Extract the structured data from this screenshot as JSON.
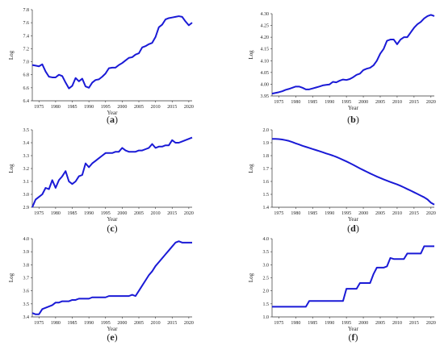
{
  "figure": {
    "style": {
      "line_color": "#1a1ad6",
      "axis_color": "#333333"
    },
    "panels": [
      {
        "id": "a",
        "caption": "(a)",
        "caption_letter": "a"
      },
      {
        "id": "b",
        "caption": "(b)",
        "caption_letter": "b"
      },
      {
        "id": "c",
        "caption": "(c)",
        "caption_letter": "c"
      },
      {
        "id": "d",
        "caption": "(d)",
        "caption_letter": "d"
      },
      {
        "id": "e",
        "caption": "(e)",
        "caption_letter": "e"
      },
      {
        "id": "f",
        "caption": "(f)",
        "caption_letter": "f"
      }
    ]
  },
  "chart_data": [
    {
      "type": "line",
      "xlabel": "Year",
      "ylabel": "Log",
      "xlim": [
        1973,
        2021
      ],
      "ylim": [
        6.4,
        7.8
      ],
      "x_ticks": [
        "1975",
        "1980",
        "1985",
        "1990",
        "1995",
        "2000",
        "2005",
        "2010",
        "2015",
        "2020"
      ],
      "y_ticks": [
        "6.4",
        "6.6",
        "6.8",
        "7.0",
        "7.2",
        "7.4",
        "7.6",
        "7.8"
      ],
      "series": [
        {
          "x": [
            1973,
            1974,
            1975,
            1976,
            1977,
            1978,
            1979,
            1980,
            1981,
            1982,
            1983,
            1984,
            1985,
            1986,
            1987,
            1988,
            1989,
            1990,
            1991,
            1992,
            1993,
            1994,
            1995,
            1996,
            1997,
            1998,
            1999,
            2000,
            2001,
            2002,
            2003,
            2004,
            2005,
            2006,
            2007,
            2008,
            2009,
            2010,
            2011,
            2012,
            2013,
            2014,
            2015,
            2016,
            2017,
            2018,
            2019,
            2020,
            2021
          ],
          "y": [
            6.95,
            6.94,
            6.93,
            6.96,
            6.85,
            6.77,
            6.76,
            6.76,
            6.8,
            6.78,
            6.68,
            6.59,
            6.63,
            6.75,
            6.7,
            6.74,
            6.62,
            6.6,
            6.68,
            6.72,
            6.73,
            6.77,
            6.82,
            6.9,
            6.91,
            6.91,
            6.95,
            6.98,
            7.02,
            7.06,
            7.07,
            7.11,
            7.13,
            7.22,
            7.24,
            7.27,
            7.29,
            7.38,
            7.53,
            7.57,
            7.65,
            7.67,
            7.68,
            7.69,
            7.7,
            7.69,
            7.62,
            7.56,
            7.6
          ]
        }
      ]
    },
    {
      "type": "line",
      "xlabel": "Year",
      "ylabel": "Log",
      "xlim": [
        1973,
        2021
      ],
      "ylim": [
        3.95,
        4.3
      ],
      "x_ticks": [
        "1975",
        "1980",
        "1985",
        "1990",
        "1995",
        "2000",
        "2005",
        "2010",
        "2015",
        "2020"
      ],
      "y_ticks": [
        "3.95",
        "4.00",
        "4.05",
        "4.10",
        "4.15",
        "4.20",
        "4.25",
        "4.30"
      ],
      "series": [
        {
          "x": [
            1973,
            1974,
            1975,
            1976,
            1977,
            1978,
            1979,
            1980,
            1981,
            1982,
            1983,
            1984,
            1985,
            1986,
            1987,
            1988,
            1989,
            1990,
            1991,
            1992,
            1993,
            1994,
            1995,
            1996,
            1997,
            1998,
            1999,
            2000,
            2001,
            2002,
            2003,
            2004,
            2005,
            2006,
            2007,
            2008,
            2009,
            2010,
            2011,
            2012,
            2013,
            2014,
            2015,
            2016,
            2017,
            2018,
            2019,
            2020,
            2021
          ],
          "y": [
            3.96,
            3.963,
            3.966,
            3.97,
            3.976,
            3.98,
            3.985,
            3.99,
            3.99,
            3.985,
            3.978,
            3.978,
            3.982,
            3.986,
            3.99,
            3.995,
            3.997,
            3.999,
            4.01,
            4.008,
            4.015,
            4.02,
            4.018,
            4.022,
            4.03,
            4.04,
            4.045,
            4.06,
            4.066,
            4.07,
            4.08,
            4.1,
            4.13,
            4.15,
            4.185,
            4.19,
            4.19,
            4.17,
            4.19,
            4.2,
            4.2,
            4.22,
            4.24,
            4.255,
            4.265,
            4.28,
            4.29,
            4.295,
            4.29
          ]
        }
      ]
    },
    {
      "type": "line",
      "xlabel": "Year",
      "ylabel": "Log",
      "xlim": [
        1973,
        2021
      ],
      "ylim": [
        2.9,
        3.5
      ],
      "x_ticks": [
        "1975",
        "1980",
        "1985",
        "1990",
        "1995",
        "2000",
        "2005",
        "2010",
        "2015",
        "2020"
      ],
      "y_ticks": [
        "2.9",
        "3.0",
        "3.1",
        "3.2",
        "3.3",
        "3.4",
        "3.5"
      ],
      "series": [
        {
          "x": [
            1973,
            1974,
            1975,
            1976,
            1977,
            1978,
            1979,
            1980,
            1981,
            1982,
            1983,
            1984,
            1985,
            1986,
            1987,
            1988,
            1989,
            1990,
            1991,
            1992,
            1993,
            1994,
            1995,
            1996,
            1997,
            1998,
            1999,
            2000,
            2001,
            2002,
            2003,
            2004,
            2005,
            2006,
            2007,
            2008,
            2009,
            2010,
            2011,
            2012,
            2013,
            2014,
            2015,
            2016,
            2017,
            2018,
            2019,
            2020,
            2021
          ],
          "y": [
            2.9,
            2.96,
            2.98,
            3.0,
            3.05,
            3.04,
            3.11,
            3.05,
            3.11,
            3.14,
            3.18,
            3.1,
            3.08,
            3.1,
            3.14,
            3.15,
            3.24,
            3.21,
            3.24,
            3.26,
            3.28,
            3.3,
            3.32,
            3.32,
            3.32,
            3.33,
            3.33,
            3.36,
            3.34,
            3.33,
            3.33,
            3.33,
            3.34,
            3.34,
            3.35,
            3.36,
            3.39,
            3.36,
            3.37,
            3.37,
            3.38,
            3.38,
            3.42,
            3.4,
            3.4,
            3.41,
            3.42,
            3.43,
            3.44
          ]
        }
      ]
    },
    {
      "type": "line",
      "xlabel": "Year",
      "ylabel": "Log",
      "xlim": [
        1973,
        2021
      ],
      "ylim": [
        1.4,
        2.0
      ],
      "x_ticks": [
        "1975",
        "1980",
        "1985",
        "1990",
        "1995",
        "2000",
        "2005",
        "2010",
        "2015",
        "2020"
      ],
      "y_ticks": [
        "1.4",
        "1.5",
        "1.6",
        "1.7",
        "1.8",
        "1.9",
        "2.0"
      ],
      "series": [
        {
          "x": [
            1973,
            1974,
            1975,
            1976,
            1977,
            1978,
            1979,
            1980,
            1981,
            1982,
            1983,
            1984,
            1985,
            1986,
            1987,
            1988,
            1989,
            1990,
            1991,
            1992,
            1993,
            1994,
            1995,
            1996,
            1997,
            1998,
            1999,
            2000,
            2001,
            2002,
            2003,
            2004,
            2005,
            2006,
            2007,
            2008,
            2009,
            2010,
            2011,
            2012,
            2013,
            2014,
            2015,
            2016,
            2017,
            2018,
            2019,
            2020,
            2021
          ],
          "y": [
            1.93,
            1.93,
            1.928,
            1.925,
            1.92,
            1.914,
            1.905,
            1.895,
            1.886,
            1.876,
            1.868,
            1.86,
            1.851,
            1.843,
            1.835,
            1.826,
            1.817,
            1.809,
            1.8,
            1.79,
            1.779,
            1.767,
            1.755,
            1.742,
            1.729,
            1.715,
            1.701,
            1.688,
            1.675,
            1.662,
            1.65,
            1.638,
            1.627,
            1.616,
            1.606,
            1.596,
            1.586,
            1.577,
            1.566,
            1.554,
            1.541,
            1.529,
            1.516,
            1.503,
            1.49,
            1.477,
            1.46,
            1.435,
            1.42
          ]
        }
      ]
    },
    {
      "type": "line",
      "xlabel": "Year",
      "ylabel": "Log",
      "xlim": [
        1973,
        2021
      ],
      "ylim": [
        3.4,
        4.0
      ],
      "x_ticks": [
        "1975",
        "1980",
        "1985",
        "1990",
        "1995",
        "2000",
        "2005",
        "2010",
        "2015",
        "2020"
      ],
      "y_ticks": [
        "3.4",
        "3.5",
        "3.6",
        "3.7",
        "3.8",
        "3.9",
        "4.0"
      ],
      "series": [
        {
          "x": [
            1973,
            1974,
            1975,
            1976,
            1977,
            1978,
            1979,
            1980,
            1981,
            1982,
            1983,
            1984,
            1985,
            1986,
            1987,
            1988,
            1989,
            1990,
            1991,
            1992,
            1993,
            1994,
            1995,
            1996,
            1997,
            1998,
            1999,
            2000,
            2001,
            2002,
            2003,
            2004,
            2005,
            2006,
            2007,
            2008,
            2009,
            2010,
            2011,
            2012,
            2013,
            2014,
            2015,
            2016,
            2017,
            2018,
            2019,
            2020,
            2021
          ],
          "y": [
            3.43,
            3.42,
            3.42,
            3.46,
            3.47,
            3.48,
            3.49,
            3.51,
            3.51,
            3.52,
            3.52,
            3.52,
            3.53,
            3.53,
            3.54,
            3.54,
            3.54,
            3.54,
            3.55,
            3.55,
            3.55,
            3.55,
            3.55,
            3.56,
            3.56,
            3.56,
            3.56,
            3.56,
            3.56,
            3.56,
            3.57,
            3.56,
            3.6,
            3.64,
            3.68,
            3.72,
            3.75,
            3.79,
            3.82,
            3.85,
            3.88,
            3.91,
            3.94,
            3.97,
            3.98,
            3.97,
            3.97,
            3.97,
            3.97
          ]
        }
      ]
    },
    {
      "type": "line",
      "xlabel": "Year",
      "ylabel": "Log",
      "xlim": [
        1973,
        2021
      ],
      "ylim": [
        1.0,
        4.0
      ],
      "x_ticks": [
        "1975",
        "1980",
        "1985",
        "1990",
        "1995",
        "2000",
        "2005",
        "2010",
        "2015",
        "2020"
      ],
      "y_ticks": [
        "1.0",
        "1.5",
        "2.0",
        "2.5",
        "3.0",
        "3.5",
        "4.0"
      ],
      "series": [
        {
          "x": [
            1973,
            1974,
            1975,
            1976,
            1977,
            1978,
            1979,
            1980,
            1981,
            1982,
            1983,
            1984,
            1985,
            1986,
            1987,
            1988,
            1989,
            1990,
            1991,
            1992,
            1993,
            1994,
            1995,
            1996,
            1997,
            1998,
            1999,
            2000,
            2001,
            2002,
            2003,
            2004,
            2005,
            2006,
            2007,
            2008,
            2009,
            2010,
            2011,
            2012,
            2013,
            2014,
            2015,
            2016,
            2017,
            2018,
            2019,
            2020,
            2021
          ],
          "y": [
            1.39,
            1.39,
            1.39,
            1.39,
            1.39,
            1.39,
            1.39,
            1.39,
            1.39,
            1.39,
            1.39,
            1.61,
            1.61,
            1.61,
            1.61,
            1.61,
            1.61,
            1.61,
            1.61,
            1.61,
            1.61,
            1.61,
            2.08,
            2.08,
            2.08,
            2.08,
            2.3,
            2.3,
            2.3,
            2.3,
            2.64,
            2.89,
            2.89,
            2.89,
            2.94,
            3.26,
            3.22,
            3.22,
            3.22,
            3.22,
            3.43,
            3.43,
            3.43,
            3.43,
            3.43,
            3.71,
            3.71,
            3.71,
            3.71
          ]
        }
      ]
    }
  ]
}
